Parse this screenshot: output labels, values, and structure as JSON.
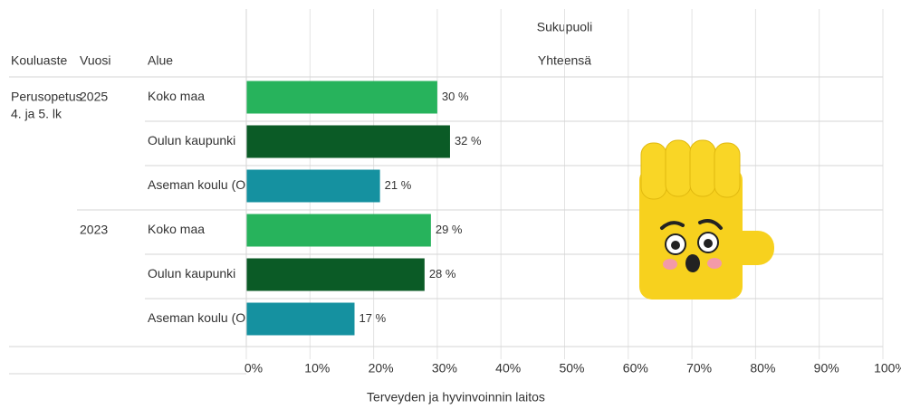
{
  "chart_data": {
    "type": "bar",
    "header": "Sukupuoli",
    "subheader": "Yhteensä",
    "row_headers": [
      "Kouluaste",
      "Vuosi",
      "Alue"
    ],
    "school_level": [
      "Perusopetus",
      "4. ja 5. lk"
    ],
    "groups": [
      {
        "year": "2025",
        "categories": [
          "Koko maa",
          "Oulun kaupunki",
          "Aseman koulu (Oulu)"
        ],
        "values": [
          30,
          32,
          21
        ],
        "value_labels": [
          "30 %",
          "32 %",
          "21 %"
        ]
      },
      {
        "year": "2023",
        "categories": [
          "Koko maa",
          "Oulun kaupunki",
          "Aseman koulu (Oulu)"
        ],
        "values": [
          29,
          28,
          17
        ],
        "value_labels": [
          "29 %",
          "28 %",
          "17 %"
        ]
      }
    ],
    "colors": [
      "#27b35c",
      "#0b5b26",
      "#1591a0"
    ],
    "xlim": [
      0,
      100
    ],
    "xticks": [
      {
        "value": 0,
        "label": "0%"
      },
      {
        "value": 10,
        "label": "10%"
      },
      {
        "value": 20,
        "label": "20%"
      },
      {
        "value": 30,
        "label": "30%"
      },
      {
        "value": 40,
        "label": "40%"
      },
      {
        "value": 50,
        "label": "50%"
      },
      {
        "value": 60,
        "label": "60%"
      },
      {
        "value": 70,
        "label": "70%"
      },
      {
        "value": 80,
        "label": "80%"
      },
      {
        "value": 90,
        "label": "90%"
      },
      {
        "value": 100,
        "label": "100%"
      }
    ],
    "grid": true,
    "source": "Terveyden ja hyvinvoinnin laitos"
  }
}
